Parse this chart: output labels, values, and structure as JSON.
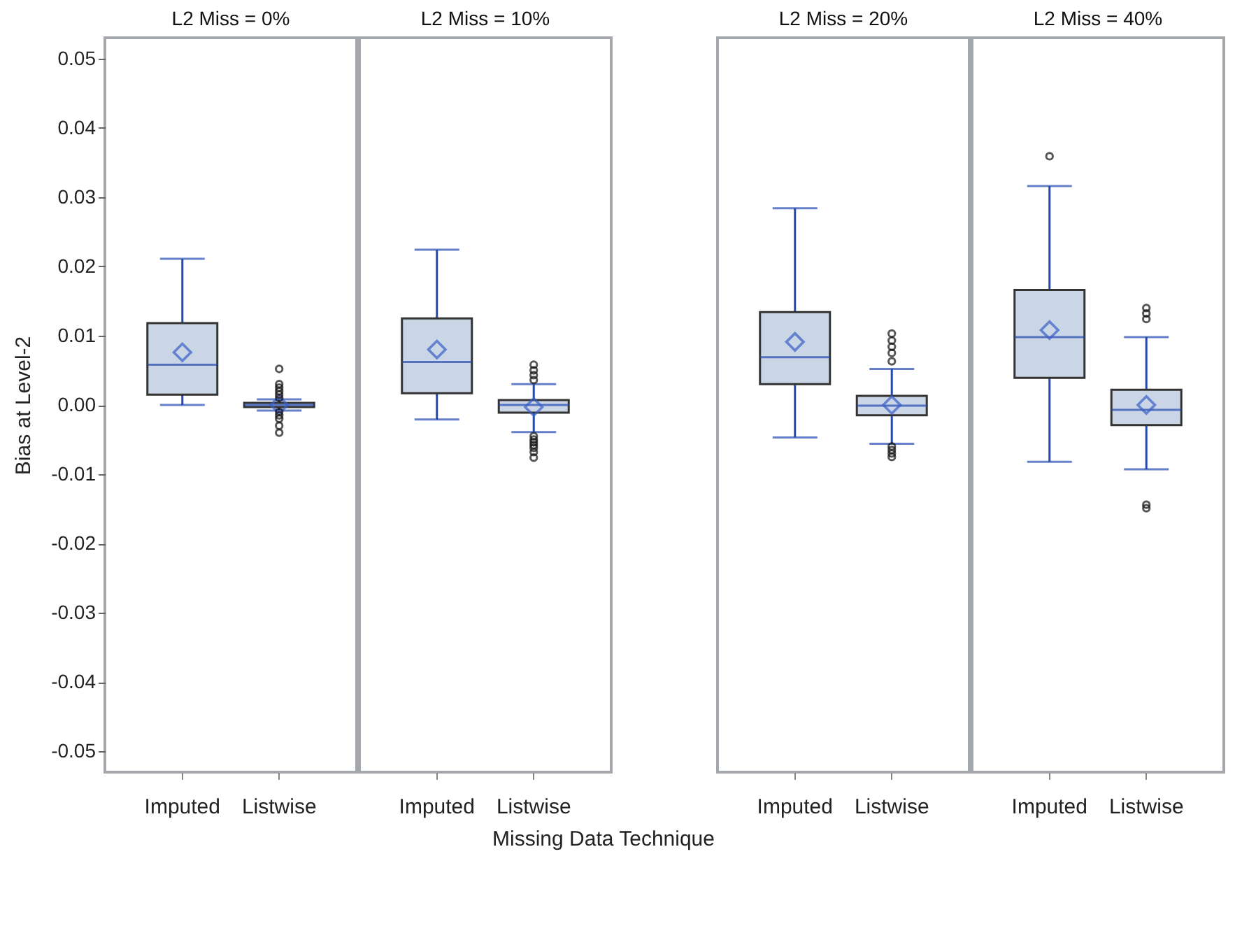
{
  "chart_data": [
    {
      "type": "box",
      "title": "L2 Miss = 0%",
      "ylabel": "Bias at Level-2",
      "categories": [
        "Imputed",
        "Listwise"
      ],
      "ylim": [
        -0.053,
        0.053
      ],
      "yticks": [
        -0.05,
        -0.04,
        -0.03,
        -0.02,
        -0.01,
        {
          "value": 0,
          "label": "0.00"
        },
        0.01,
        0.02,
        0.03,
        0.04,
        0.05
      ],
      "grid": false,
      "boxes": [
        {
          "low": 0.0,
          "q1": 0.0015,
          "median": 0.0058,
          "q3": 0.0118,
          "high": 0.0211,
          "mean": 0.0076
        },
        {
          "low": -0.0008,
          "q1": -0.0003,
          "median": 0.0,
          "q3": 0.0003,
          "high": 0.0008,
          "mean": 0.0,
          "outliers": [
            0.0052,
            0.003,
            0.0025,
            0.002,
            0.0015,
            0.001,
            -0.001,
            -0.0015,
            -0.002,
            -0.003,
            -0.004
          ]
        }
      ]
    },
    {
      "type": "box",
      "title": "L2 Miss = 10%",
      "xlabel": "Missing Data Technique",
      "categories": [
        "Imputed",
        "Listwise"
      ],
      "ylim": [
        -0.053,
        0.053
      ],
      "tick_labels": "x",
      "grid": false,
      "boxes": [
        {
          "low": -0.0021,
          "q1": 0.0017,
          "median": 0.0062,
          "q3": 0.0125,
          "high": 0.0224,
          "mean": 0.008
        },
        {
          "low": -0.0039,
          "q1": -0.0011,
          "median": 0.0,
          "q3": 0.0007,
          "high": 0.003,
          "mean": -0.0003,
          "outliers": [
            0.0058,
            0.005,
            0.0043,
            0.0036,
            -0.0045,
            -0.005,
            -0.0054,
            -0.0058,
            -0.0062,
            -0.0068,
            -0.0076
          ]
        }
      ]
    },
    {
      "type": "box",
      "title": "L2 Miss = 20%",
      "categories": [
        "Imputed",
        "Listwise"
      ],
      "ylim": [
        -0.053,
        0.053
      ],
      "tick_labels": "x",
      "grid": false,
      "boxes": [
        {
          "low": -0.0047,
          "q1": 0.003,
          "median": 0.0069,
          "q3": 0.0134,
          "high": 0.0284,
          "mean": 0.0091
        },
        {
          "low": -0.0056,
          "q1": -0.0015,
          "median": -0.0001,
          "q3": 0.0013,
          "high": 0.0052,
          "mean": 0.0,
          "outliers": [
            0.0103,
            0.0093,
            0.0084,
            0.0075,
            0.0063,
            -0.006,
            -0.0065,
            -0.007,
            -0.0075
          ]
        }
      ]
    },
    {
      "type": "box",
      "title": "L2 Miss = 40%",
      "categories": [
        "Imputed",
        "Listwise"
      ],
      "ylim": [
        -0.053,
        0.053
      ],
      "tick_labels": "x",
      "grid": false,
      "boxes": [
        {
          "low": -0.0082,
          "q1": 0.0039,
          "median": 0.0098,
          "q3": 0.0166,
          "high": 0.0316,
          "mean": 0.0108,
          "outliers": [
            0.0359
          ]
        },
        {
          "low": -0.0093,
          "q1": -0.0029,
          "median": -0.0007,
          "q3": 0.0022,
          "high": 0.0098,
          "mean": 0.0,
          "outliers": [
            0.014,
            0.0132,
            0.0124,
            -0.0144,
            -0.0149
          ]
        }
      ]
    }
  ]
}
